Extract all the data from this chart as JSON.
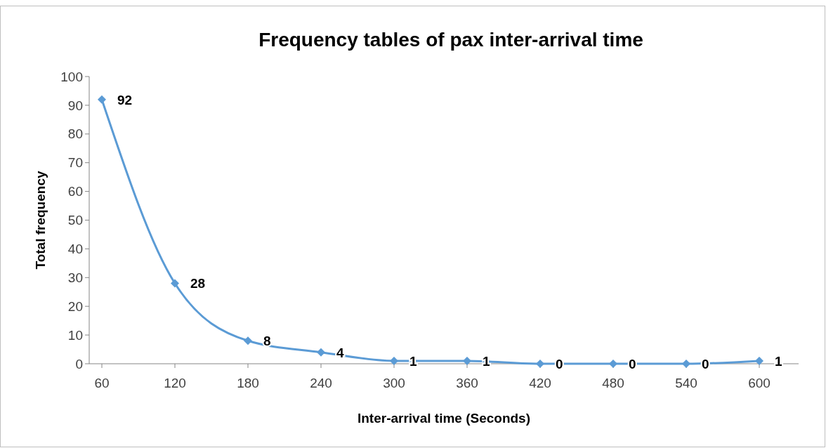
{
  "chart_data": {
    "type": "line",
    "title": "Frequency tables of pax inter-arrival time",
    "xlabel": "Inter-arrival time (Seconds)",
    "ylabel": "Total frequency",
    "categories": [
      "60",
      "120",
      "180",
      "240",
      "300",
      "360",
      "420",
      "480",
      "540",
      "600"
    ],
    "series": [
      {
        "color": "#5b9bd5",
        "values": [
          92,
          28,
          8,
          4,
          1,
          1,
          0,
          0,
          0,
          1
        ]
      }
    ],
    "ylim": [
      0,
      100
    ],
    "yticks": [
      0,
      10,
      20,
      30,
      40,
      50,
      60,
      70,
      80,
      90,
      100
    ],
    "grid": false,
    "marker": "diamond",
    "line_style": "solid",
    "data_labels": true
  }
}
